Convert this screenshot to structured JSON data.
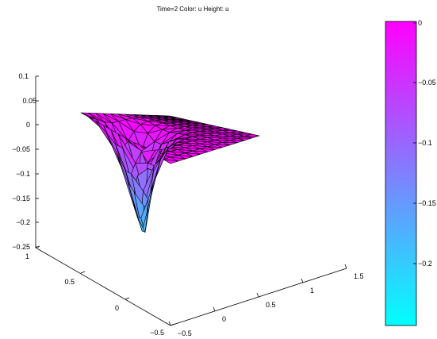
{
  "chart_data": {
    "type": "surface",
    "title": "Time=2   Color: u  Height: u",
    "colormap": {
      "low": "#00ffff",
      "high": "#ff00ff"
    },
    "z_ticks": [
      "0.1",
      "0.05",
      "0",
      "−0.05",
      "−0.1",
      "−0.15",
      "−0.2",
      "−0.25"
    ],
    "y_ticks": [
      "1",
      "0.5",
      "0",
      "−0.5"
    ],
    "x_ticks": [
      "−0.5",
      "0",
      "0.5",
      "1",
      "1.5"
    ],
    "colorbar_ticks": [
      "0",
      "−0.05",
      "−0.1",
      "−0.15",
      "−0.2"
    ],
    "zlim": [
      -0.25,
      0.1
    ],
    "xlim": [
      -0.5,
      1.5
    ],
    "ylim": [
      -0.5,
      1
    ],
    "clim": [
      -0.23,
      0
    ],
    "surface": {
      "min_value": -0.23,
      "edge_values": 0
    }
  }
}
